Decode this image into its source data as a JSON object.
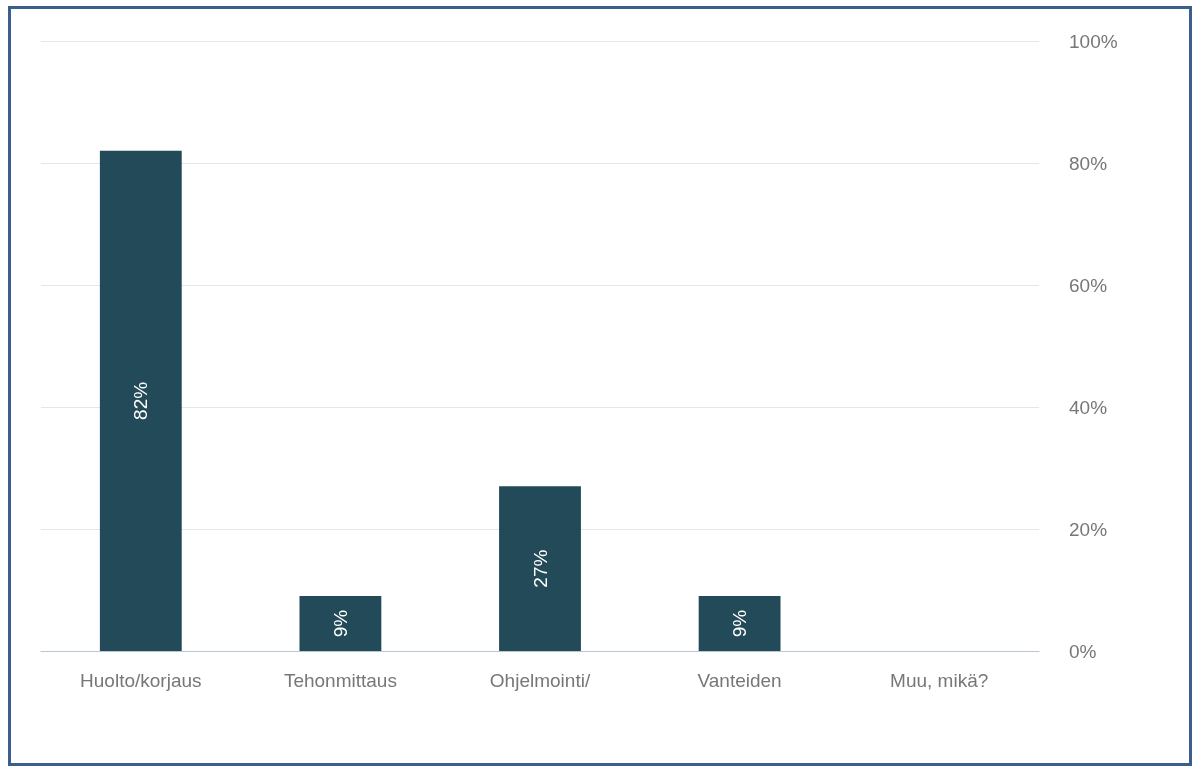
{
  "chart_data": {
    "type": "bar",
    "categories": [
      "Huolto/korjaus",
      "Tehonmittaus",
      "Ohjelmointi/",
      "Vanteiden",
      "Muu, mikä?"
    ],
    "values": [
      82,
      9,
      27,
      9,
      0
    ],
    "color": "#234a58",
    "value_labels": [
      "82%",
      "9%",
      "27%",
      "9%",
      null
    ],
    "ylim": [
      0,
      100
    ],
    "yticks": [
      {
        "value": 0,
        "label": "0%"
      },
      {
        "value": 20,
        "label": "20%"
      },
      {
        "value": 40,
        "label": "40%"
      },
      {
        "value": 60,
        "label": "60%"
      },
      {
        "value": 80,
        "label": "80%"
      },
      {
        "value": 100,
        "label": "100%"
      }
    ],
    "grid": "y"
  }
}
